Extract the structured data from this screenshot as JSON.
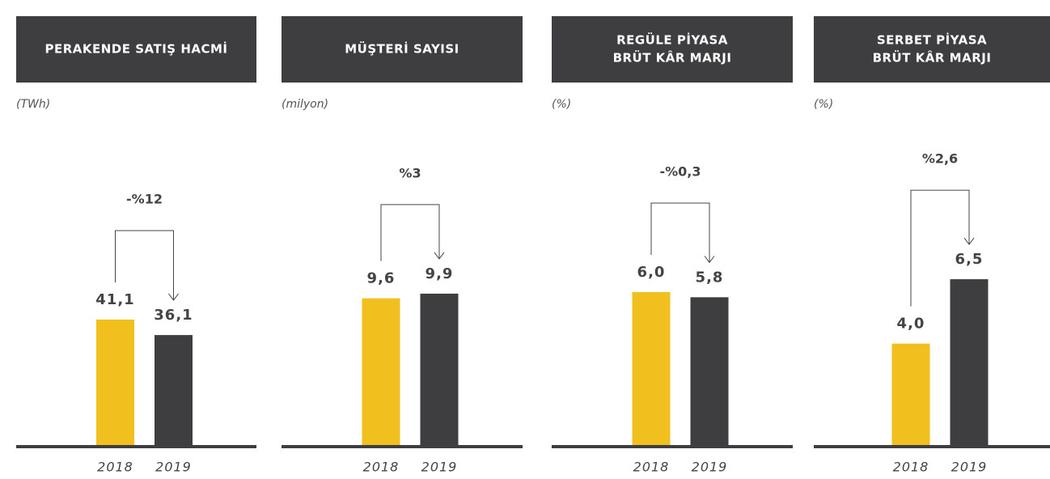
{
  "chart_data": [
    {
      "type": "bar",
      "title": [
        "PERAKENDE SATIŞ HACMİ"
      ],
      "subtitle": "(TWh)",
      "categories": [
        "2018",
        "2019"
      ],
      "values": [
        41.1,
        36.1
      ],
      "value_labels": [
        "41,1",
        "36,1"
      ],
      "colors": [
        "#f2c01e",
        "#3e3e40"
      ],
      "annotation": "-%12",
      "ylim": [
        0,
        100
      ]
    },
    {
      "type": "bar",
      "title": [
        "MÜŞTERİ SAYISI"
      ],
      "subtitle": "(milyon)",
      "categories": [
        "2018",
        "2019"
      ],
      "values": [
        9.6,
        9.9
      ],
      "value_labels": [
        "9,6",
        "9,9"
      ],
      "colors": [
        "#f2c01e",
        "#3e3e40"
      ],
      "annotation": "%3",
      "ylim": [
        0,
        20
      ]
    },
    {
      "type": "bar",
      "title": [
        "REGÜLE PİYASA",
        "BRÜT KÂR MARJI"
      ],
      "subtitle": "(%)",
      "categories": [
        "2018",
        "2019"
      ],
      "values": [
        6.0,
        5.8
      ],
      "value_labels": [
        "6,0",
        "5,8"
      ],
      "colors": [
        "#f2c01e",
        "#3e3e40"
      ],
      "annotation": "-%0,3",
      "ylim": [
        0,
        12
      ]
    },
    {
      "type": "bar",
      "title": [
        "SERBET PİYASA",
        "BRÜT KÂR MARJI"
      ],
      "subtitle": "(%)",
      "categories": [
        "2018",
        "2019"
      ],
      "values": [
        4.0,
        6.5
      ],
      "value_labels": [
        "4,0",
        "6,5"
      ],
      "colors": [
        "#f2c01e",
        "#3e3e40"
      ],
      "annotation": "%2,6",
      "ylim": [
        0,
        12
      ]
    }
  ]
}
